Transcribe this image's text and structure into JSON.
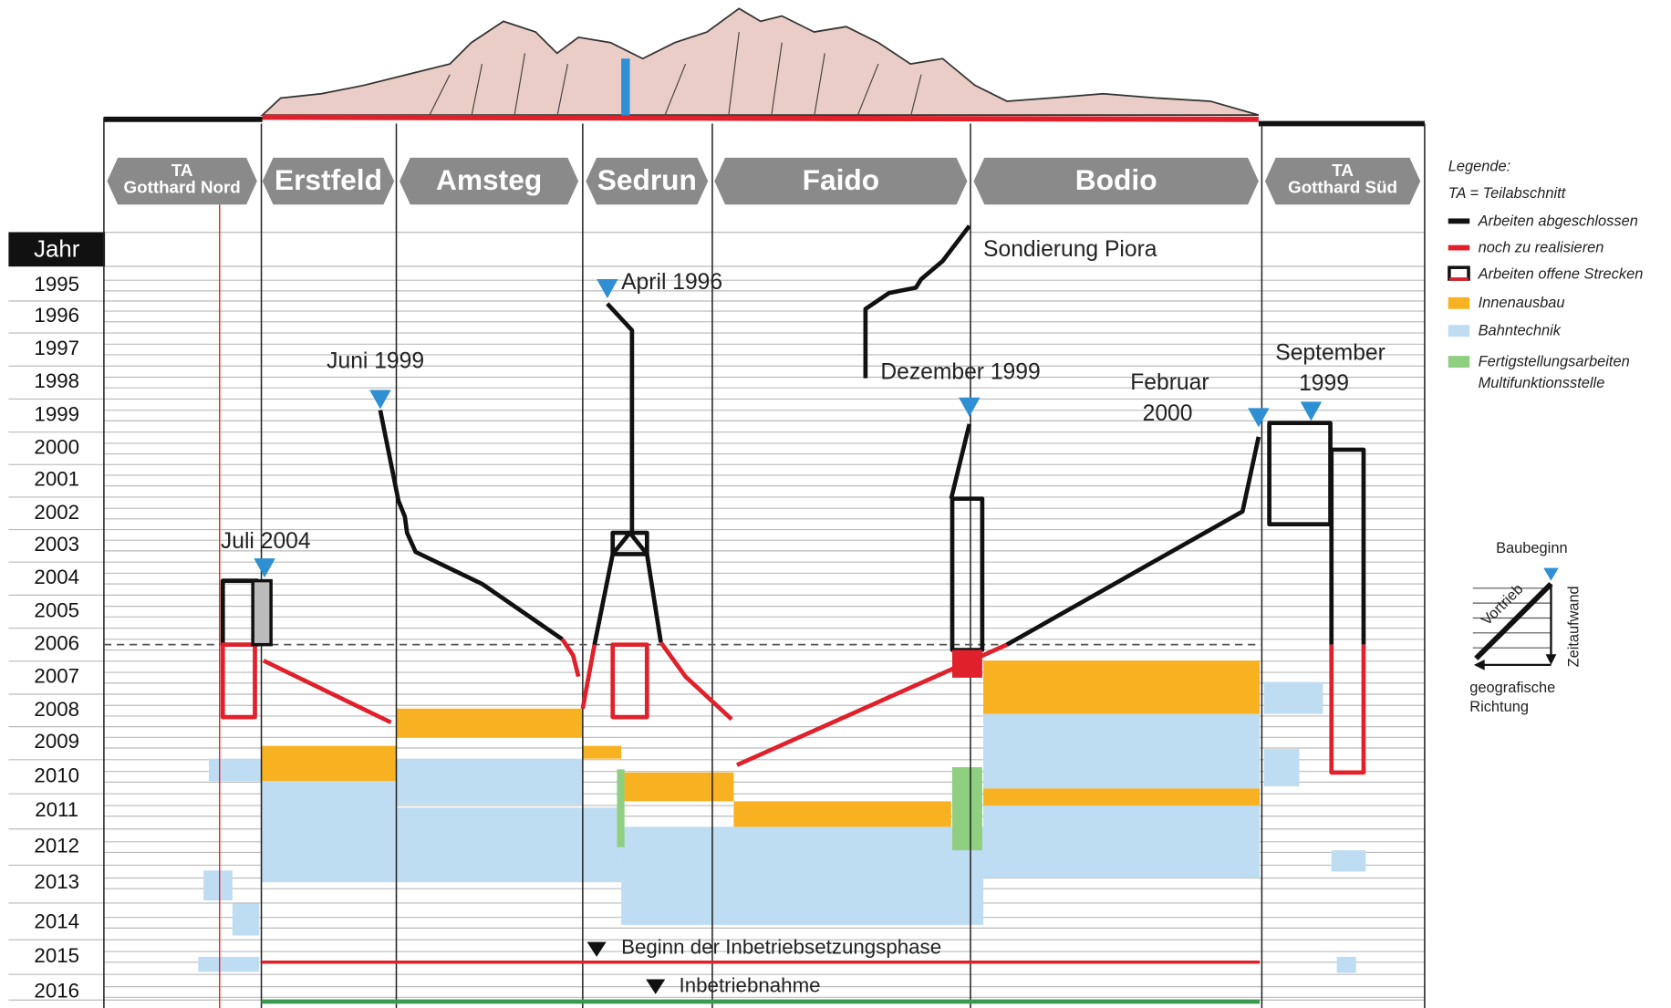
{
  "sections": [
    {
      "lines": [
        "TA",
        "Gotthard Nord"
      ]
    },
    {
      "lines": [
        "Erstfeld"
      ]
    },
    {
      "lines": [
        "Amsteg"
      ]
    },
    {
      "lines": [
        "Sedrun"
      ]
    },
    {
      "lines": [
        "Faido"
      ]
    },
    {
      "lines": [
        "Bodio"
      ]
    },
    {
      "lines": [
        "TA",
        "Gotthard Süd"
      ]
    }
  ],
  "year_header": "Jahr",
  "years": [
    "1995",
    "1996",
    "1997",
    "1998",
    "1999",
    "2000",
    "2001",
    "2002",
    "2003",
    "2004",
    "2005",
    "2006",
    "2007",
    "2008",
    "2009",
    "2010",
    "2011",
    "2012",
    "2013",
    "2014",
    "2015",
    "2016"
  ],
  "annotations": {
    "juli": "Juli 2004",
    "juni": "Juni 1999",
    "april": "April 1996",
    "dezember": "Dezember 1999",
    "februar": [
      "Februar",
      "2000"
    ],
    "september": [
      "September",
      "1999"
    ],
    "piora": "Sondierung Piora"
  },
  "milestones": [
    "Beginn der Inbetriebsetzungsphase",
    "Inbetriebnahme"
  ],
  "legend": {
    "title": "Legende:",
    "items": [
      "TA = Teilabschnitt",
      "Arbeiten abgeschlossen",
      "noch zu realisieren",
      "Arbeiten offene Strecken",
      "Innenausbau",
      "Bahntechnik",
      "Fertigstellungsarbeiten",
      "Multifunktionsstelle"
    ]
  },
  "inset": {
    "start": "Baubeginn",
    "drive": "Vortrieb",
    "time": "Zeitaufwand",
    "direction": [
      "geografische",
      "Richtung"
    ]
  }
}
